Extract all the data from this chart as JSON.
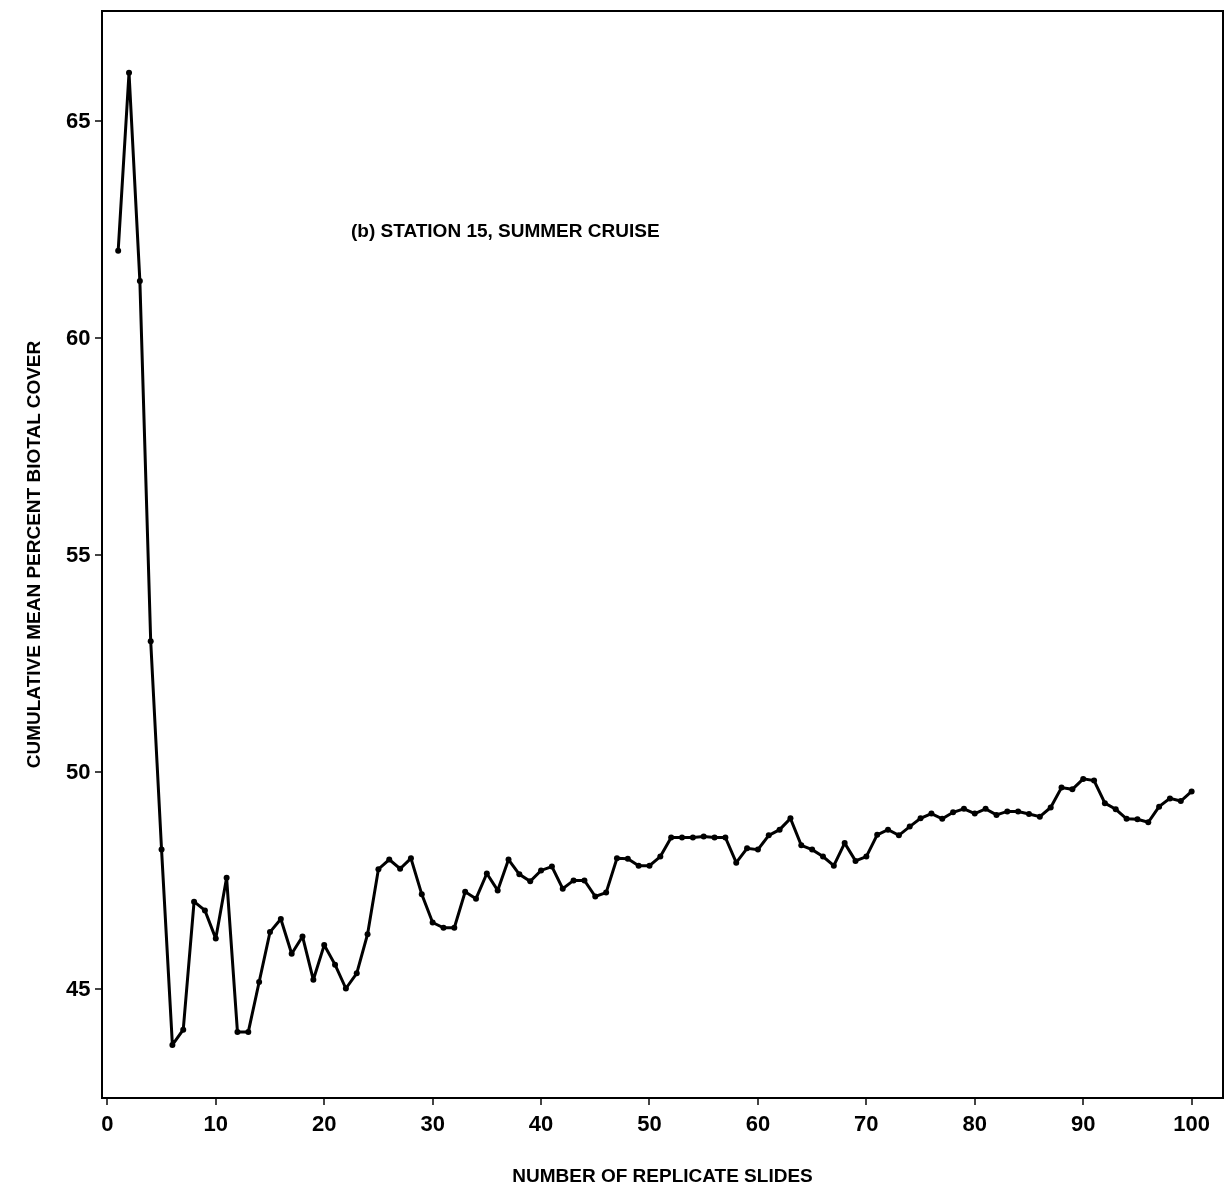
{
  "chart_data": {
    "type": "line",
    "xlabel": "NUMBER OF REPLICATE SLIDES",
    "ylabel": "CUMULATIVE MEAN PERCENT BIOTAL COVER",
    "annotations": [
      "(b) STATION 15, SUMMER CRUISE"
    ],
    "x": [
      1,
      2,
      3,
      4,
      5,
      6,
      7,
      8,
      9,
      10,
      11,
      12,
      13,
      14,
      15,
      16,
      17,
      18,
      19,
      20,
      21,
      22,
      23,
      24,
      25,
      26,
      27,
      28,
      29,
      30,
      31,
      32,
      33,
      34,
      35,
      36,
      37,
      38,
      39,
      40,
      41,
      42,
      43,
      44,
      45,
      46,
      47,
      48,
      49,
      50,
      51,
      52,
      53,
      54,
      55,
      56,
      57,
      58,
      59,
      60,
      61,
      62,
      63,
      64,
      65,
      66,
      67,
      68,
      69,
      70,
      71,
      72,
      73,
      74,
      75,
      76,
      77,
      78,
      79,
      80,
      81,
      82,
      83,
      84,
      85,
      86,
      87,
      88,
      89,
      90,
      91,
      92,
      93,
      94,
      95,
      96,
      97,
      98,
      99,
      100
    ],
    "series": [
      {
        "color": "#000000",
        "values": [
          62.0,
          66.1,
          61.3,
          53.0,
          48.2,
          43.7,
          44.05,
          47.0,
          46.8,
          46.15,
          47.55,
          44.0,
          44.0,
          45.15,
          46.3,
          46.6,
          45.8,
          46.2,
          45.2,
          46.0,
          45.55,
          45.0,
          45.35,
          46.25,
          47.75,
          47.97,
          47.76,
          48.0,
          47.17,
          46.52,
          46.4,
          46.4,
          47.23,
          47.07,
          47.65,
          47.26,
          47.97,
          47.63,
          47.47,
          47.72,
          47.81,
          47.3,
          47.49,
          47.49,
          47.12,
          47.21,
          48.0,
          47.99,
          47.83,
          47.83,
          48.04,
          48.48,
          48.48,
          48.48,
          48.5,
          48.48,
          48.48,
          47.9,
          48.23,
          48.2,
          48.53,
          48.66,
          48.92,
          48.3,
          48.2,
          48.04,
          47.83,
          48.35,
          47.94,
          48.04,
          48.54,
          48.66,
          48.53,
          48.73,
          48.92,
          49.03,
          48.91,
          49.06,
          49.14,
          49.03,
          49.14,
          49.0,
          49.08,
          49.08,
          49.02,
          48.96,
          49.17,
          49.63,
          49.59,
          49.83,
          49.79,
          49.27,
          49.13,
          48.91,
          48.9,
          48.83,
          49.19,
          49.38,
          49.32,
          49.54
        ]
      }
    ],
    "xlim": [
      -0.4,
      102.8
    ],
    "ylim": [
      42.5,
      67.5
    ],
    "xticks": [
      0,
      10,
      20,
      30,
      40,
      50,
      60,
      70,
      80,
      90,
      100
    ],
    "yticks": [
      45,
      50,
      55,
      60,
      65
    ],
    "grid": false,
    "marker": "circle",
    "line_style": "solid"
  }
}
